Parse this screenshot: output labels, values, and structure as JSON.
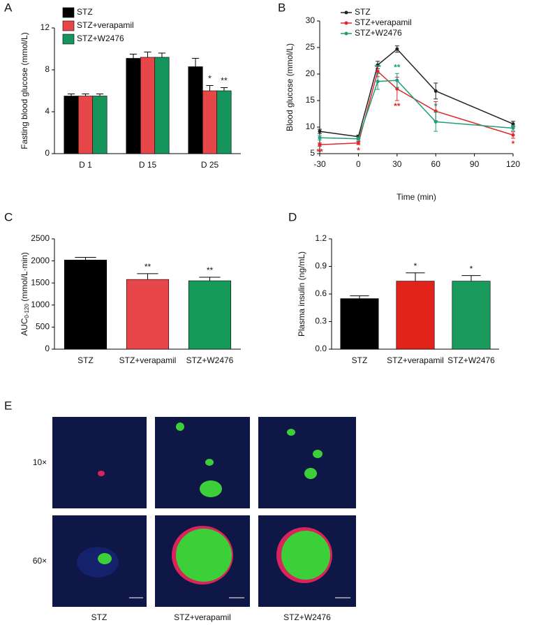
{
  "chart_data": [
    {
      "type": "bar",
      "panel": "A",
      "ylabel": "Fasting blood glucose (mmol/L)",
      "categories": [
        "D 1",
        "D 15",
        "D 25"
      ],
      "series": [
        {
          "name": "STZ",
          "color": "#000000",
          "values": [
            5.5,
            9.1,
            8.3
          ],
          "errors": [
            0.2,
            0.4,
            0.8
          ],
          "significance": [
            null,
            null,
            null
          ]
        },
        {
          "name": "STZ+verapamil",
          "color": "#e8474a",
          "values": [
            5.5,
            9.2,
            6.0
          ],
          "errors": [
            0.2,
            0.5,
            0.5
          ],
          "significance": [
            null,
            null,
            "*"
          ]
        },
        {
          "name": "STZ+W2476",
          "color": "#15955b",
          "values": [
            5.5,
            9.2,
            6.0
          ],
          "errors": [
            0.2,
            0.4,
            0.3
          ],
          "significance": [
            null,
            null,
            "**"
          ]
        }
      ],
      "ylim": [
        0,
        12
      ],
      "yticks": [
        0,
        4,
        8,
        12
      ],
      "legend": "top-left"
    },
    {
      "type": "line",
      "panel": "B",
      "xlabel": "Time (min)",
      "ylabel": "Blood glucose (mmol/L)",
      "x": [
        -30,
        0,
        15,
        30,
        60,
        120
      ],
      "series": [
        {
          "name": "STZ",
          "color": "#222222",
          "values": [
            9.2,
            8.2,
            21.7,
            24.7,
            16.8,
            10.6
          ],
          "errors": [
            0.4,
            0.3,
            0.7,
            0.6,
            1.5,
            0.5
          ],
          "significance": [
            null,
            null,
            null,
            null,
            null,
            null
          ]
        },
        {
          "name": "STZ+verapamil",
          "color": "#e0282b",
          "values": [
            6.7,
            7.0,
            20.5,
            17.2,
            13.0,
            8.5
          ],
          "errors": [
            0.3,
            0.3,
            1.0,
            2.2,
            1.8,
            0.6
          ],
          "significance": [
            "**",
            "*",
            null,
            "**",
            null,
            "*"
          ]
        },
        {
          "name": "STZ+W2476",
          "color": "#1f9e78",
          "values": [
            8.0,
            7.8,
            18.6,
            18.8,
            11.0,
            9.8
          ],
          "errors": [
            0.4,
            0.3,
            1.5,
            1.3,
            1.8,
            0.5
          ],
          "significance": [
            null,
            null,
            "**",
            "**",
            "*",
            null
          ]
        }
      ],
      "xlim": [
        -30,
        120
      ],
      "xticks": [
        -30,
        0,
        30,
        60,
        90,
        120
      ],
      "ylim": [
        5,
        30
      ],
      "yticks": [
        5,
        10,
        15,
        20,
        25,
        30
      ],
      "legend": "top-left"
    },
    {
      "type": "bar",
      "panel": "C",
      "ylabel": {
        "main": "AUC",
        "sub": "0-120",
        "unit": " (mmol/L·min)"
      },
      "categories": [
        "STZ",
        "STZ+verapamil",
        "STZ+W2476"
      ],
      "values": [
        2020,
        1580,
        1550
      ],
      "errors": [
        60,
        130,
        80
      ],
      "significance": [
        null,
        "**",
        "**"
      ],
      "colors": [
        "#000000",
        "#e8474a",
        "#169a5a"
      ],
      "ylim": [
        0,
        2500
      ],
      "yticks": [
        0,
        500,
        1000,
        1500,
        2000,
        2500
      ]
    },
    {
      "type": "bar",
      "panel": "D",
      "ylabel": "Plasma insulin (ng/mL)",
      "categories": [
        "STZ",
        "STZ+verapamil",
        "STZ+W2476"
      ],
      "values": [
        0.55,
        0.74,
        0.74
      ],
      "errors": [
        0.03,
        0.09,
        0.06
      ],
      "significance": [
        null,
        "*",
        "*"
      ],
      "colors": [
        "#000000",
        "#e2231a",
        "#1b9a5e"
      ],
      "ylim": [
        0,
        1.2
      ],
      "yticks": [
        {
          "value": 0,
          "label": "0.0"
        },
        0.3,
        0.6,
        0.9,
        1.2
      ]
    }
  ],
  "panel_e": {
    "label": "E",
    "rows": [
      "10×",
      "60×"
    ],
    "columns": [
      "STZ",
      "STZ+verapamil",
      "STZ+W2476"
    ]
  }
}
